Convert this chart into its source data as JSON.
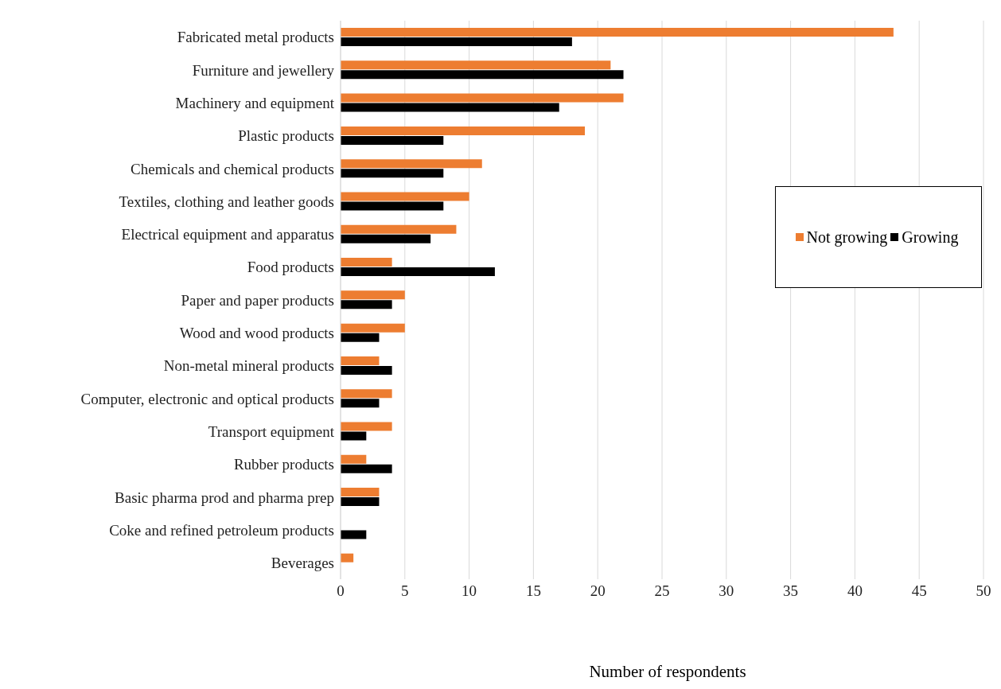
{
  "chart_data": {
    "type": "bar",
    "orientation": "horizontal",
    "xlabel": "Number of respondents",
    "categories": [
      "Fabricated metal products",
      "Furniture and jewellery",
      "Machinery and equipment",
      "Plastic products",
      "Chemicals and chemical products",
      "Textiles, clothing and leather goods",
      "Electrical equipment and apparatus",
      "Food products",
      "Paper and paper products",
      "Wood and wood products",
      "Non-metal mineral products",
      "Computer, electronic and optical products",
      "Transport equipment",
      "Rubber products",
      "Basic pharma prod and pharma prep",
      "Coke and refined petroleum products",
      "Beverages"
    ],
    "series": [
      {
        "name": "Not growing",
        "color": "#ed7d31",
        "values": [
          43,
          21,
          22,
          19,
          11,
          10,
          9,
          4,
          5,
          5,
          3,
          4,
          4,
          2,
          3,
          0,
          1
        ]
      },
      {
        "name": "Growing",
        "color": "#000000",
        "values": [
          18,
          22,
          17,
          8,
          8,
          8,
          7,
          12,
          4,
          3,
          4,
          3,
          2,
          4,
          3,
          2,
          0
        ]
      }
    ],
    "xlim": [
      0,
      50
    ],
    "xticks": [
      0,
      5,
      10,
      15,
      20,
      25,
      30,
      35,
      40,
      45,
      50
    ],
    "grid": "x",
    "legend": "right"
  }
}
